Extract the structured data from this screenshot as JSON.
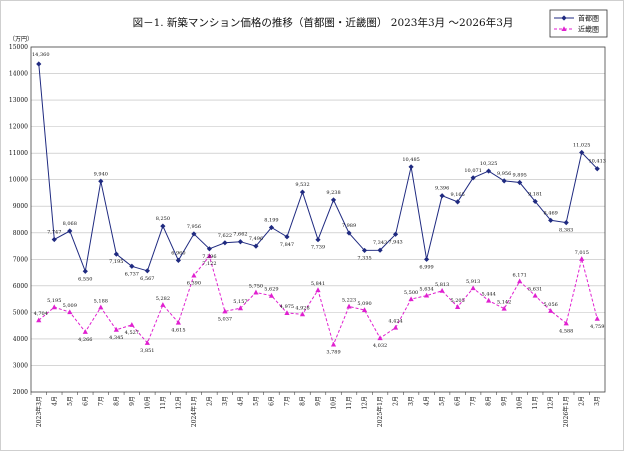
{
  "chart_data": {
    "type": "line",
    "title": "図－1. 新築マンション価格の推移（首都圏・近畿圏） 2023年3月 ～2026年3月",
    "ylabel": "（万円）",
    "ylim": [
      2000,
      15000
    ],
    "y_ticks": [
      2000,
      3000,
      4000,
      5000,
      6000,
      7000,
      8000,
      9000,
      10000,
      11000,
      12000,
      13000,
      14000,
      15000
    ],
    "grid": true,
    "legend_position": "top-right",
    "categories": [
      "2023年3月",
      "4月",
      "5月",
      "6月",
      "7月",
      "8月",
      "9月",
      "10月",
      "11月",
      "12月",
      "2024年1月",
      "2月",
      "3月",
      "4月",
      "5月",
      "6月",
      "7月",
      "8月",
      "9月",
      "10月",
      "11月",
      "12月",
      "2025年1月",
      "2月",
      "3月",
      "4月",
      "5月",
      "6月",
      "7月",
      "8月",
      "9月",
      "10月",
      "11月",
      "12月",
      "2026年1月",
      "2月",
      "3月"
    ],
    "series": [
      {
        "name": "首都圏",
        "color": "#1f2a80",
        "marker": "diamond",
        "values": [
          14360,
          7747,
          8068,
          6550,
          9940,
          7195,
          6737,
          6567,
          8250,
          6960,
          7956,
          7396,
          7622,
          7662,
          7496,
          8199,
          7847,
          9532,
          7739,
          9238,
          7989,
          7335,
          7343,
          7943,
          10485,
          6999,
          9396,
          9165,
          10071,
          10325,
          9956,
          9895,
          9181,
          8469,
          8383,
          11025,
          10413
        ],
        "labels": [
          "14,360",
          "7,747",
          "8,068",
          "6,550",
          "9,940",
          "7,195",
          "6,737",
          "6,567",
          "8,250",
          "6,960",
          "7,956",
          "7,396",
          "7,622",
          "7,662",
          "7,496",
          "8,199",
          "7,847",
          "9,532",
          "7,739",
          "9,238",
          "7,989",
          "7,335",
          "7,343",
          "7,943",
          "10,485",
          "6,999",
          "9,396",
          "9,165",
          "10,071",
          "10,325",
          "9,956",
          "9,895",
          "9,181",
          "8,469",
          "8,383",
          "11,025",
          "10,413"
        ]
      },
      {
        "name": "近畿圏",
        "color": "#e020d0",
        "marker": "triangle",
        "values": [
          4704,
          5195,
          5009,
          4266,
          5188,
          4345,
          4527,
          3851,
          5282,
          4615,
          6390,
          7122,
          5037,
          5157,
          5750,
          5629,
          4975,
          4928,
          5841,
          3789,
          5223,
          5090,
          4032,
          4424,
          5500,
          5634,
          5813,
          5205,
          5913,
          5444,
          5142,
          6171,
          5631,
          5056,
          4588,
          7015,
          4759
        ],
        "labels": [
          "4,704",
          "5,195",
          "5,009",
          "4,266",
          "5,188",
          "4,345",
          "4,527",
          "3,851",
          "5,282",
          "4,615",
          "6,390",
          "7,122",
          "5,037",
          "5,157",
          "5,750",
          "5,629",
          "4,975",
          "4,928",
          "5,841",
          "3,789",
          "5,223",
          "5,090",
          "4,032",
          "4,424",
          "5,500",
          "5,634",
          "5,813",
          "5,205",
          "5,913",
          "5,444",
          "5,142",
          "6,171",
          "5,631",
          "5,056",
          "4,588",
          "7,015",
          "4,759"
        ]
      }
    ]
  }
}
